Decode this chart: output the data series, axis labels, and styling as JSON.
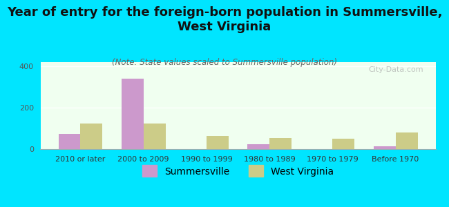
{
  "title": "Year of entry for the foreign-born population in Summersville,\nWest Virginia",
  "subtitle": "(Note: State values scaled to Summersville population)",
  "categories": [
    "2010 or later",
    "2000 to 2009",
    "1990 to 1999",
    "1980 to 1989",
    "1970 to 1979",
    "Before 1970"
  ],
  "summersville_values": [
    75,
    340,
    0,
    25,
    0,
    15
  ],
  "wv_values": [
    125,
    125,
    65,
    55,
    50,
    80
  ],
  "summersville_color": "#cc99cc",
  "wv_color": "#cccc88",
  "background_outer": "#00e5ff",
  "background_inner_top": "#f0fff0",
  "background_inner_bottom": "#e8f5e0",
  "ylim": [
    0,
    420
  ],
  "yticks": [
    0,
    200,
    400
  ],
  "bar_width": 0.35,
  "watermark": "City-Data.com",
  "legend_summersville": "Summersville",
  "legend_wv": "West Virginia",
  "title_fontsize": 13,
  "subtitle_fontsize": 8.5,
  "tick_fontsize": 8,
  "legend_fontsize": 10
}
